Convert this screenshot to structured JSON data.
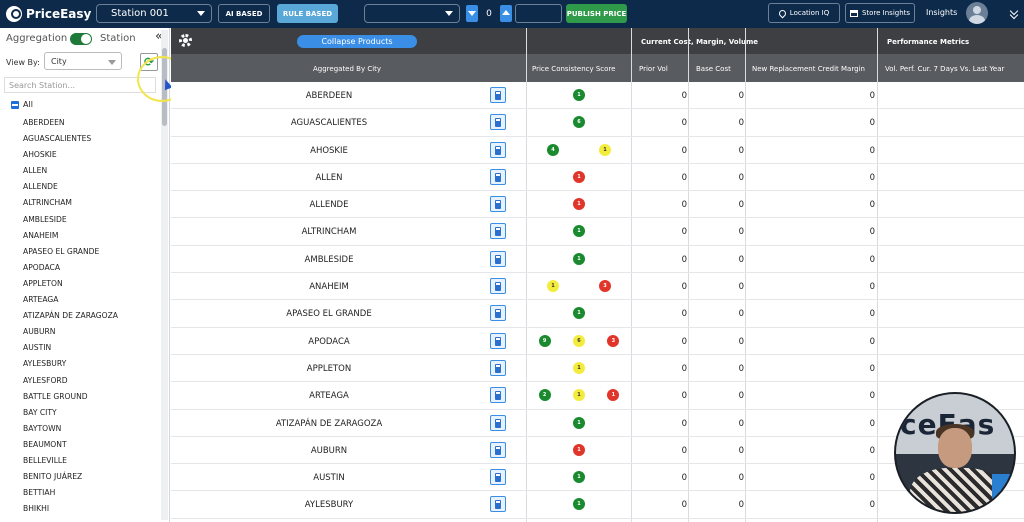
{
  "app": {
    "logo_text": "PriceEasy"
  },
  "topbar": {
    "station": "Station 001",
    "ai_based": "AI BASED",
    "rule_based": "RULE BASED",
    "step_value": "0",
    "publish": "PUBLISH PRICE",
    "location_iq": "Location IQ",
    "store_insights": "Store Insights",
    "insights": "Insights"
  },
  "sidebar": {
    "aggregation": "Aggregation",
    "station": "Station",
    "view_by": "View By:",
    "view_by_value": "City",
    "search_placeholder": "Search Station...",
    "all": "All",
    "cities": [
      "ABERDEEN",
      "AGUASCALIENTES",
      "AHOSKIE",
      "ALLEN",
      "ALLENDE",
      "ALTRINCHAM",
      "AMBLESIDE",
      "ANAHEIM",
      "APASEO EL GRANDE",
      "APODACA",
      "APPLETON",
      "ARTEAGA",
      "ATIZAPÁN DE ZARAGOZA",
      "AUBURN",
      "AUSTIN",
      "AYLESBURY",
      "AYLESFORD",
      "BATTLE GROUND",
      "BAY CITY",
      "BAYTOWN",
      "BEAUMONT",
      "BELLEVILLE",
      "BENITO JUÁREZ",
      "BETTIAH",
      "BHIKHI"
    ]
  },
  "grid": {
    "collapse_products": "Collapse Products",
    "group_cost": "Current Cost, Margin, Volume",
    "group_performance": "Performance Metrics",
    "col_aggregated": "Aggregated By City",
    "col_consistency": "Price Consistency Score",
    "col_prior_vol": "Prior Vol",
    "col_base_cost": "Base Cost",
    "col_credit": "New Replacement Credit Margin",
    "col_perf": "Vol. Perf. Cur. 7 Days Vs. Last Year",
    "rows": [
      {
        "city": "ABERDEEN",
        "dots": [
          {
            "c": "green",
            "v": "1",
            "x": 0.5
          }
        ],
        "prior": "0",
        "base": "0",
        "credit": "0"
      },
      {
        "city": "AGUASCALIENTES",
        "dots": [
          {
            "c": "green",
            "v": "6",
            "x": 0.5
          }
        ],
        "prior": "0",
        "base": "0",
        "credit": "0"
      },
      {
        "city": "AHOSKIE",
        "dots": [
          {
            "c": "green",
            "v": "4",
            "x": 0.25
          },
          {
            "c": "yellow",
            "v": "1",
            "x": 0.75
          }
        ],
        "prior": "0",
        "base": "0",
        "credit": "0"
      },
      {
        "city": "ALLEN",
        "dots": [
          {
            "c": "red",
            "v": "1",
            "x": 0.5
          }
        ],
        "prior": "0",
        "base": "0",
        "credit": "0"
      },
      {
        "city": "ALLENDE",
        "dots": [
          {
            "c": "red",
            "v": "1",
            "x": 0.5
          }
        ],
        "prior": "0",
        "base": "0",
        "credit": "0"
      },
      {
        "city": "ALTRINCHAM",
        "dots": [
          {
            "c": "green",
            "v": "1",
            "x": 0.5
          }
        ],
        "prior": "0",
        "base": "0",
        "credit": "0"
      },
      {
        "city": "AMBLESIDE",
        "dots": [
          {
            "c": "green",
            "v": "1",
            "x": 0.5
          }
        ],
        "prior": "0",
        "base": "0",
        "credit": "0"
      },
      {
        "city": "ANAHEIM",
        "dots": [
          {
            "c": "yellow",
            "v": "1",
            "x": 0.25
          },
          {
            "c": "red",
            "v": "3",
            "x": 0.75
          }
        ],
        "prior": "0",
        "base": "0",
        "credit": "0"
      },
      {
        "city": "APASEO EL GRANDE",
        "dots": [
          {
            "c": "green",
            "v": "1",
            "x": 0.5
          }
        ],
        "prior": "0",
        "base": "0",
        "credit": "0"
      },
      {
        "city": "APODACA",
        "dots": [
          {
            "c": "green",
            "v": "9",
            "x": 0.17
          },
          {
            "c": "yellow",
            "v": "6",
            "x": 0.5
          },
          {
            "c": "red",
            "v": "3",
            "x": 0.83
          }
        ],
        "prior": "0",
        "base": "0",
        "credit": "0"
      },
      {
        "city": "APPLETON",
        "dots": [
          {
            "c": "yellow",
            "v": "1",
            "x": 0.5
          }
        ],
        "prior": "0",
        "base": "0",
        "credit": "0"
      },
      {
        "city": "ARTEAGA",
        "dots": [
          {
            "c": "green",
            "v": "2",
            "x": 0.17
          },
          {
            "c": "yellow",
            "v": "1",
            "x": 0.5
          },
          {
            "c": "red",
            "v": "1",
            "x": 0.83
          }
        ],
        "prior": "0",
        "base": "0",
        "credit": "0"
      },
      {
        "city": "ATIZAPÁN DE ZARAGOZA",
        "dots": [
          {
            "c": "green",
            "v": "1",
            "x": 0.5
          }
        ],
        "prior": "0",
        "base": "0",
        "credit": "0"
      },
      {
        "city": "AUBURN",
        "dots": [
          {
            "c": "red",
            "v": "1",
            "x": 0.5
          }
        ],
        "prior": "0",
        "base": "0",
        "credit": "0"
      },
      {
        "city": "AUSTIN",
        "dots": [
          {
            "c": "green",
            "v": "1",
            "x": 0.5
          }
        ],
        "prior": "0",
        "base": "0",
        "credit": "0"
      },
      {
        "city": "AYLESBURY",
        "dots": [
          {
            "c": "green",
            "v": "1",
            "x": 0.5
          }
        ],
        "prior": "0",
        "base": "0",
        "credit": "0"
      }
    ]
  }
}
